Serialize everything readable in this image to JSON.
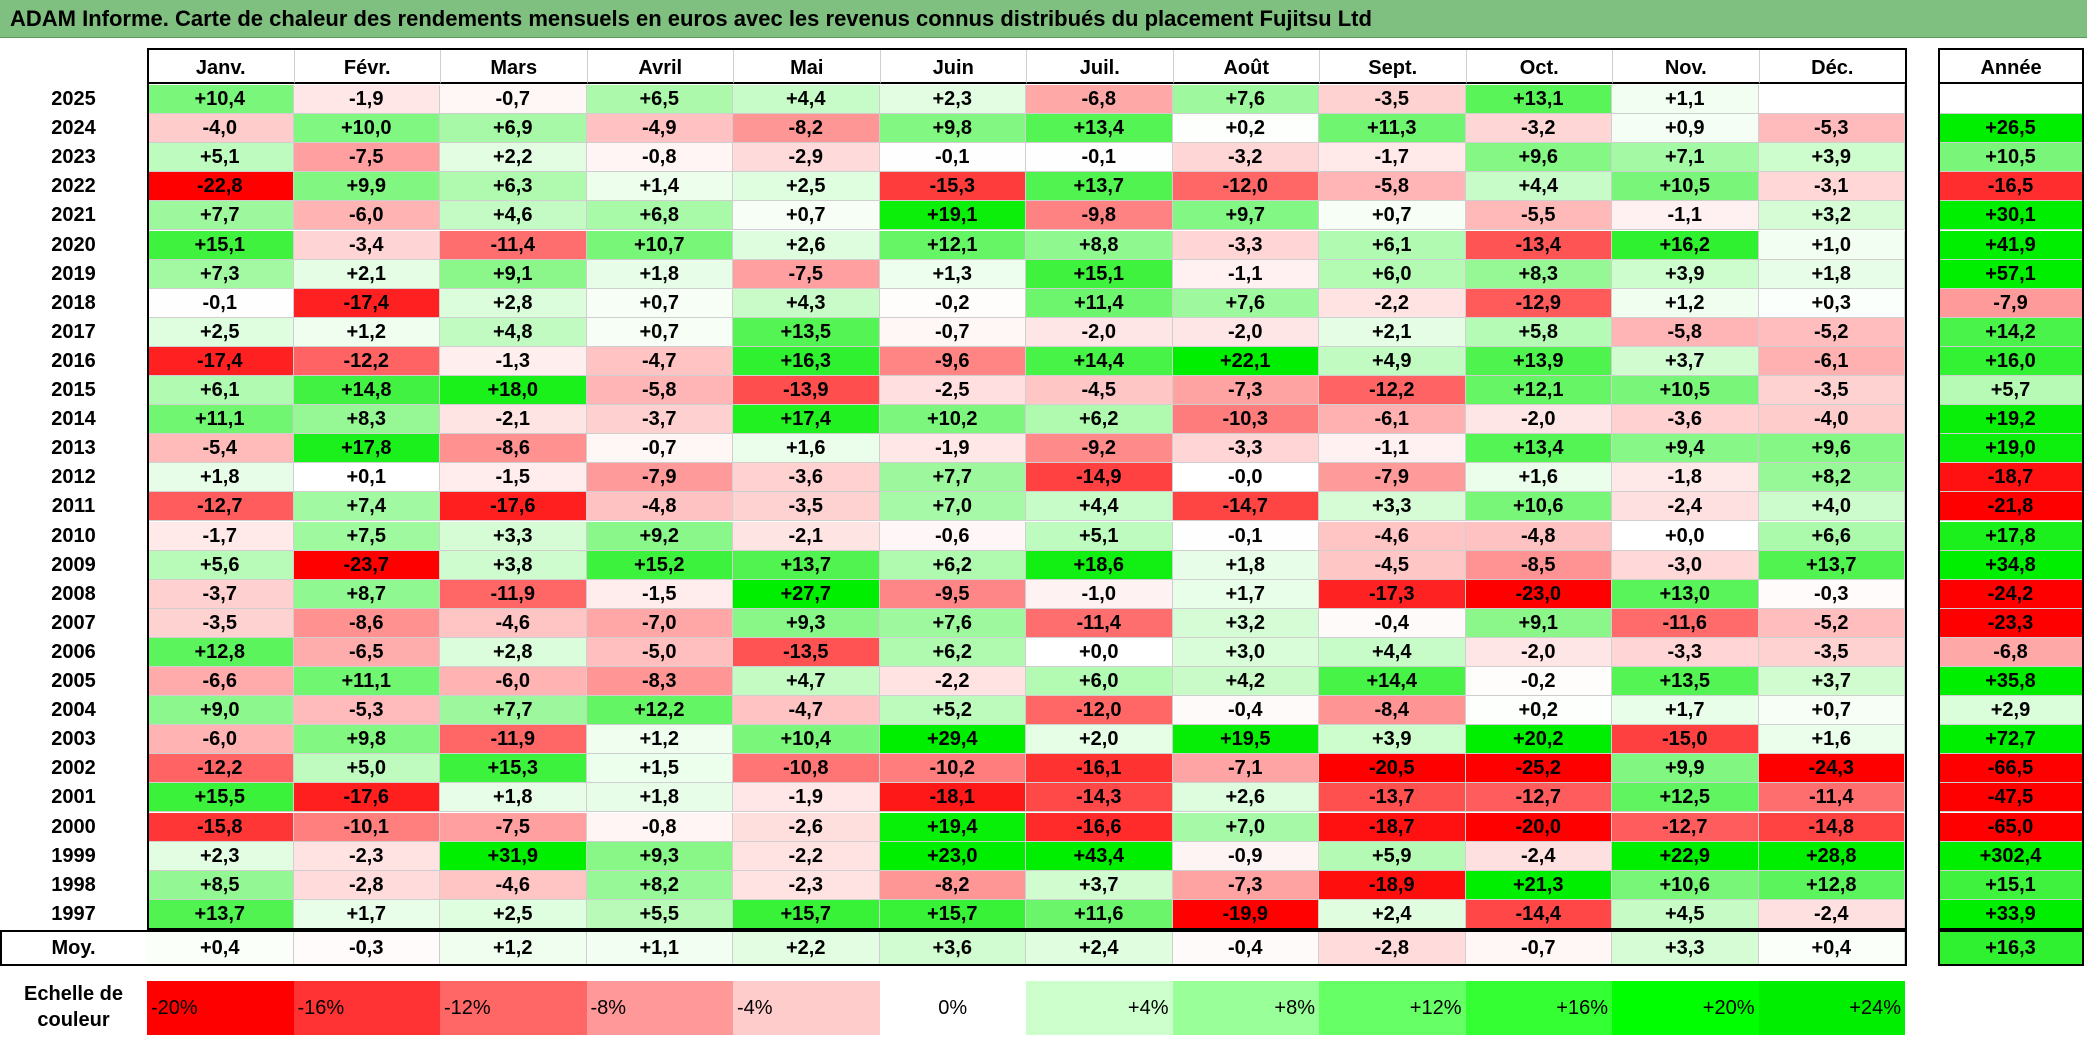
{
  "title": "ADAM Informe. Carte de chaleur des rendements mensuels en euros avec les revenus connus distribués du placement Fujitsu Ltd",
  "chart_data": {
    "type": "heatmap",
    "title": "ADAM Informe. Carte de chaleur des rendements mensuels en euros avec les revenus connus distribués du placement Fujitsu Ltd",
    "months": [
      "Janv.",
      "Févr.",
      "Mars",
      "Avril",
      "Mai",
      "Juin",
      "Juil.",
      "Août",
      "Sept.",
      "Oct.",
      "Nov.",
      "Déc."
    ],
    "year_header": "Année",
    "rows": [
      {
        "year": "2025",
        "values": [
          "+10,4",
          "-1,9",
          "-0,7",
          "+6,5",
          "+4,4",
          "+2,3",
          "-6,8",
          "+7,6",
          "-3,5",
          "+13,1",
          "+1,1",
          ""
        ],
        "annual": ""
      },
      {
        "year": "2024",
        "values": [
          "-4,0",
          "+10,0",
          "+6,9",
          "-4,9",
          "-8,2",
          "+9,8",
          "+13,4",
          "+0,2",
          "+11,3",
          "-3,2",
          "+0,9",
          "-5,3"
        ],
        "annual": "+26,5"
      },
      {
        "year": "2023",
        "values": [
          "+5,1",
          "-7,5",
          "+2,2",
          "-0,8",
          "-2,9",
          "-0,1",
          "-0,1",
          "-3,2",
          "-1,7",
          "+9,6",
          "+7,1",
          "+3,9"
        ],
        "annual": "+10,5"
      },
      {
        "year": "2022",
        "values": [
          "-22,8",
          "+9,9",
          "+6,3",
          "+1,4",
          "+2,5",
          "-15,3",
          "+13,7",
          "-12,0",
          "-5,8",
          "+4,4",
          "+10,5",
          "-3,1"
        ],
        "annual": "-16,5"
      },
      {
        "year": "2021",
        "values": [
          "+7,7",
          "-6,0",
          "+4,6",
          "+6,8",
          "+0,7",
          "+19,1",
          "-9,8",
          "+9,7",
          "+0,7",
          "-5,5",
          "-1,1",
          "+3,2"
        ],
        "annual": "+30,1"
      },
      {
        "year": "2020",
        "values": [
          "+15,1",
          "-3,4",
          "-11,4",
          "+10,7",
          "+2,6",
          "+12,1",
          "+8,8",
          "-3,3",
          "+6,1",
          "-13,4",
          "+16,2",
          "+1,0"
        ],
        "annual": "+41,9"
      },
      {
        "year": "2019",
        "values": [
          "+7,3",
          "+2,1",
          "+9,1",
          "+1,8",
          "-7,5",
          "+1,3",
          "+15,1",
          "-1,1",
          "+6,0",
          "+8,3",
          "+3,9",
          "+1,8"
        ],
        "annual": "+57,1"
      },
      {
        "year": "2018",
        "values": [
          "-0,1",
          "-17,4",
          "+2,8",
          "+0,7",
          "+4,3",
          "-0,2",
          "+11,4",
          "+7,6",
          "-2,2",
          "-12,9",
          "+1,2",
          "+0,3"
        ],
        "annual": "-7,9"
      },
      {
        "year": "2017",
        "values": [
          "+2,5",
          "+1,2",
          "+4,8",
          "+0,7",
          "+13,5",
          "-0,7",
          "-2,0",
          "-2,0",
          "+2,1",
          "+5,8",
          "-5,8",
          "-5,2"
        ],
        "annual": "+14,2"
      },
      {
        "year": "2016",
        "values": [
          "-17,4",
          "-12,2",
          "-1,3",
          "-4,7",
          "+16,3",
          "-9,6",
          "+14,4",
          "+22,1",
          "+4,9",
          "+13,9",
          "+3,7",
          "-6,1"
        ],
        "annual": "+16,0"
      },
      {
        "year": "2015",
        "values": [
          "+6,1",
          "+14,8",
          "+18,0",
          "-5,8",
          "-13,9",
          "-2,5",
          "-4,5",
          "-7,3",
          "-12,2",
          "+12,1",
          "+10,5",
          "-3,5"
        ],
        "annual": "+5,7"
      },
      {
        "year": "2014",
        "values": [
          "+11,1",
          "+8,3",
          "-2,1",
          "-3,7",
          "+17,4",
          "+10,2",
          "+6,2",
          "-10,3",
          "-6,1",
          "-2,0",
          "-3,6",
          "-4,0"
        ],
        "annual": "+19,2"
      },
      {
        "year": "2013",
        "values": [
          "-5,4",
          "+17,8",
          "-8,6",
          "-0,7",
          "+1,6",
          "-1,9",
          "-9,2",
          "-3,3",
          "-1,1",
          "+13,4",
          "+9,4",
          "+9,6"
        ],
        "annual": "+19,0"
      },
      {
        "year": "2012",
        "values": [
          "+1,8",
          "+0,1",
          "-1,5",
          "-7,9",
          "-3,6",
          "+7,7",
          "-14,9",
          "-0,0",
          "-7,9",
          "+1,6",
          "-1,8",
          "+8,2"
        ],
        "annual": "-18,7"
      },
      {
        "year": "2011",
        "values": [
          "-12,7",
          "+7,4",
          "-17,6",
          "-4,8",
          "-3,5",
          "+7,0",
          "+4,4",
          "-14,7",
          "+3,3",
          "+10,6",
          "-2,4",
          "+4,0"
        ],
        "annual": "-21,8"
      },
      {
        "year": "2010",
        "values": [
          "-1,7",
          "+7,5",
          "+3,3",
          "+9,2",
          "-2,1",
          "-0,6",
          "+5,1",
          "-0,1",
          "-4,6",
          "-4,8",
          "+0,0",
          "+6,6"
        ],
        "annual": "+17,8"
      },
      {
        "year": "2009",
        "values": [
          "+5,6",
          "-23,7",
          "+3,8",
          "+15,2",
          "+13,7",
          "+6,2",
          "+18,6",
          "+1,8",
          "-4,5",
          "-8,5",
          "-3,0",
          "+13,7"
        ],
        "annual": "+34,8"
      },
      {
        "year": "2008",
        "values": [
          "-3,7",
          "+8,7",
          "-11,9",
          "-1,5",
          "+27,7",
          "-9,5",
          "-1,0",
          "+1,7",
          "-17,3",
          "-23,0",
          "+13,0",
          "-0,3"
        ],
        "annual": "-24,2"
      },
      {
        "year": "2007",
        "values": [
          "-3,5",
          "-8,6",
          "-4,6",
          "-7,0",
          "+9,3",
          "+7,6",
          "-11,4",
          "+3,2",
          "-0,4",
          "+9,1",
          "-11,6",
          "-5,2"
        ],
        "annual": "-23,3"
      },
      {
        "year": "2006",
        "values": [
          "+12,8",
          "-6,5",
          "+2,8",
          "-5,0",
          "-13,5",
          "+6,2",
          "+0,0",
          "+3,0",
          "+4,4",
          "-2,0",
          "-3,3",
          "-3,5"
        ],
        "annual": "-6,8"
      },
      {
        "year": "2005",
        "values": [
          "-6,6",
          "+11,1",
          "-6,0",
          "-8,3",
          "+4,7",
          "-2,2",
          "+6,0",
          "+4,2",
          "+14,4",
          "-0,2",
          "+13,5",
          "+3,7"
        ],
        "annual": "+35,8"
      },
      {
        "year": "2004",
        "values": [
          "+9,0",
          "-5,3",
          "+7,7",
          "+12,2",
          "-4,7",
          "+5,2",
          "-12,0",
          "-0,4",
          "-8,4",
          "+0,2",
          "+1,7",
          "+0,7"
        ],
        "annual": "+2,9"
      },
      {
        "year": "2003",
        "values": [
          "-6,0",
          "+9,8",
          "-11,9",
          "+1,2",
          "+10,4",
          "+29,4",
          "+2,0",
          "+19,5",
          "+3,9",
          "+20,2",
          "-15,0",
          "+1,6"
        ],
        "annual": "+72,7"
      },
      {
        "year": "2002",
        "values": [
          "-12,2",
          "+5,0",
          "+15,3",
          "+1,5",
          "-10,8",
          "-10,2",
          "-16,1",
          "-7,1",
          "-20,5",
          "-25,2",
          "+9,9",
          "-24,3"
        ],
        "annual": "-66,5"
      },
      {
        "year": "2001",
        "values": [
          "+15,5",
          "-17,6",
          "+1,8",
          "+1,8",
          "-1,9",
          "-18,1",
          "-14,3",
          "+2,6",
          "-13,7",
          "-12,7",
          "+12,5",
          "-11,4"
        ],
        "annual": "-47,5"
      },
      {
        "year": "2000",
        "values": [
          "-15,8",
          "-10,1",
          "-7,5",
          "-0,8",
          "-2,6",
          "+19,4",
          "-16,6",
          "+7,0",
          "-18,7",
          "-20,0",
          "-12,7",
          "-14,8"
        ],
        "annual": "-65,0"
      },
      {
        "year": "1999",
        "values": [
          "+2,3",
          "-2,3",
          "+31,9",
          "+9,3",
          "-2,2",
          "+23,0",
          "+43,4",
          "-0,9",
          "+5,9",
          "-2,4",
          "+22,9",
          "+28,8"
        ],
        "annual": "+302,4"
      },
      {
        "year": "1998",
        "values": [
          "+8,5",
          "-2,8",
          "-4,6",
          "+8,2",
          "-2,3",
          "-8,2",
          "+3,7",
          "-7,3",
          "-18,9",
          "+21,3",
          "+10,6",
          "+12,8"
        ],
        "annual": "+15,1"
      },
      {
        "year": "1997",
        "values": [
          "+13,7",
          "+1,7",
          "+2,5",
          "+5,5",
          "+15,7",
          "+15,7",
          "+11,6",
          "-19,9",
          "+2,4",
          "-14,4",
          "+4,5",
          "-2,4"
        ],
        "annual": "+33,9"
      }
    ],
    "average": {
      "label": "Moy.",
      "values": [
        "+0,4",
        "-0,3",
        "+1,2",
        "+1,1",
        "+2,2",
        "+3,6",
        "+2,4",
        "-0,4",
        "-2,8",
        "-0,7",
        "+3,3",
        "+0,4"
      ],
      "annual": "+16,3"
    },
    "scale": {
      "label_line1": "Echelle de",
      "label_line2": "couleur",
      "steps": [
        {
          "label": "-20%",
          "value": -20,
          "color": "#ff0000"
        },
        {
          "label": "-16%",
          "value": -16,
          "color": "#ff3333"
        },
        {
          "label": "-12%",
          "value": -12,
          "color": "#ff6666"
        },
        {
          "label": "-8%",
          "value": -8,
          "color": "#ff9999"
        },
        {
          "label": "-4%",
          "value": -4,
          "color": "#ffcccc"
        },
        {
          "label": "0%",
          "value": 0,
          "color": "#ffffff"
        },
        {
          "label": "+4%",
          "value": 4,
          "color": "#ccffcc"
        },
        {
          "label": "+8%",
          "value": 8,
          "color": "#99ff99"
        },
        {
          "label": "+12%",
          "value": 12,
          "color": "#66ff66"
        },
        {
          "label": "+16%",
          "value": 16,
          "color": "#33ff33"
        },
        {
          "label": "+20%",
          "value": 20,
          "color": "#00ff00"
        },
        {
          "label": "+24%",
          "value": 24,
          "color": "#00ee00"
        }
      ]
    }
  }
}
